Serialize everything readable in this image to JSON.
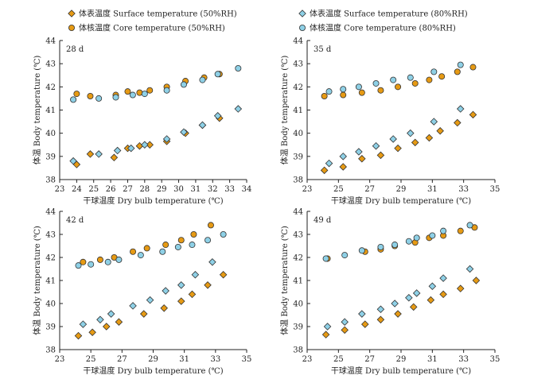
{
  "legend": [
    {
      "label": "体表温度 Surface temperature (50%RH)",
      "marker": "diamond",
      "color": "#E69A14"
    },
    {
      "label": "体表温度 Surface temperature (80%RH)",
      "marker": "diamond",
      "color": "#8ED0E6"
    },
    {
      "label": "体核温度 Core temperature (50%RH)",
      "marker": "circle",
      "color": "#E69A14"
    },
    {
      "label": "体核温度 Core temperature (80%RH)",
      "marker": "circle",
      "color": "#8ED0E6"
    }
  ],
  "colors": {
    "rh50": "#E69A14",
    "rh80": "#8ED0E6",
    "stroke": "#333333"
  },
  "chart_data": [
    {
      "type": "scatter",
      "title": "28 d",
      "xlabel": "干球温度 Dry bulb temperature (℃)",
      "ylabel": "体温 Body temperature (℃)",
      "xlim": [
        23,
        34
      ],
      "ylim": [
        38,
        44
      ],
      "xticks": [
        23,
        24,
        25,
        26,
        27,
        28,
        29,
        30,
        31,
        32,
        33,
        34
      ],
      "yticks": [
        38,
        39,
        40,
        41,
        42,
        43,
        44
      ],
      "series": [
        {
          "name": "体表温度 Surface temperature (50%RH)",
          "marker": "diamond",
          "x": [
            24.0,
            24.8,
            26.2,
            27.0,
            27.7,
            28.3,
            29.3,
            30.4,
            31.4,
            32.4
          ],
          "y": [
            38.65,
            39.1,
            38.95,
            39.35,
            39.45,
            39.5,
            39.65,
            40.0,
            40.35,
            40.65
          ]
        },
        {
          "name": "体表温度 Surface temperature (80%RH)",
          "marker": "diamond",
          "x": [
            23.8,
            25.3,
            26.4,
            27.2,
            28.0,
            29.3,
            30.3,
            31.4,
            32.3,
            33.5
          ],
          "y": [
            38.8,
            39.1,
            39.25,
            39.35,
            39.5,
            39.75,
            40.05,
            40.35,
            40.75,
            41.05
          ]
        },
        {
          "name": "体核温度 Core temperature (50%RH)",
          "marker": "circle",
          "x": [
            24.0,
            24.8,
            26.3,
            27.0,
            27.7,
            28.3,
            29.3,
            30.4,
            31.5,
            32.4
          ],
          "y": [
            41.7,
            41.6,
            41.65,
            41.8,
            41.75,
            41.85,
            42.0,
            42.25,
            42.4,
            42.55
          ]
        },
        {
          "name": "体核温度 Core temperature (80%RH)",
          "marker": "circle",
          "x": [
            23.8,
            25.3,
            26.3,
            27.3,
            28.0,
            29.3,
            30.3,
            31.4,
            32.3,
            33.5
          ],
          "y": [
            41.45,
            41.5,
            41.55,
            41.65,
            41.7,
            41.85,
            42.1,
            42.3,
            42.55,
            42.8
          ]
        }
      ]
    },
    {
      "type": "scatter",
      "title": "35 d",
      "xlabel": "干球温度 Dry bulb temperature (℃)",
      "ylabel": "体温 Body temperature (℃)",
      "xlim": [
        23,
        35
      ],
      "ylim": [
        38,
        44
      ],
      "xticks": [
        23,
        25,
        27,
        29,
        31,
        33,
        35
      ],
      "yticks": [
        38,
        39,
        40,
        41,
        42,
        43,
        44
      ],
      "series": [
        {
          "name": "体表温度 Surface temperature (50%RH)",
          "marker": "diamond",
          "x": [
            24.1,
            25.3,
            26.5,
            27.7,
            28.8,
            29.9,
            30.8,
            31.5,
            32.6,
            33.6
          ],
          "y": [
            38.4,
            38.55,
            38.9,
            39.05,
            39.35,
            39.6,
            39.8,
            40.1,
            40.45,
            40.8
          ]
        },
        {
          "name": "体表温度 Surface temperature (80%RH)",
          "marker": "diamond",
          "x": [
            24.4,
            25.3,
            26.3,
            27.4,
            28.5,
            29.6,
            31.1,
            32.8
          ],
          "y": [
            38.7,
            39.0,
            39.2,
            39.45,
            39.75,
            40.0,
            40.5,
            41.05
          ]
        },
        {
          "name": "体核温度 Core temperature (50%RH)",
          "marker": "circle",
          "x": [
            24.1,
            25.3,
            26.5,
            27.7,
            28.8,
            29.9,
            30.8,
            31.6,
            32.6,
            33.6
          ],
          "y": [
            41.6,
            41.65,
            41.75,
            41.85,
            42.0,
            42.15,
            42.3,
            42.45,
            42.65,
            42.85
          ]
        },
        {
          "name": "体核温度 Core temperature (80%RH)",
          "marker": "circle",
          "x": [
            24.4,
            25.3,
            26.3,
            27.4,
            28.5,
            29.6,
            31.1,
            32.8
          ],
          "y": [
            41.8,
            41.9,
            42.0,
            42.15,
            42.3,
            42.4,
            42.65,
            42.95
          ]
        }
      ]
    },
    {
      "type": "scatter",
      "title": "42 d",
      "xlabel": "干球温度 Dry bulb temperature (℃)",
      "ylabel": "体温 Body temperature (℃)",
      "xlim": [
        23,
        35
      ],
      "ylim": [
        38,
        44
      ],
      "xticks": [
        23,
        25,
        27,
        29,
        31,
        33,
        35
      ],
      "yticks": [
        38,
        39,
        40,
        41,
        42,
        43,
        44
      ],
      "series": [
        {
          "name": "体表温度 Surface temperature (50%RH)",
          "marker": "diamond",
          "x": [
            24.2,
            25.1,
            26.0,
            26.8,
            28.4,
            29.7,
            30.8,
            31.5,
            32.5,
            33.5
          ],
          "y": [
            38.6,
            38.75,
            39.0,
            39.2,
            39.55,
            39.8,
            40.1,
            40.4,
            40.8,
            41.25
          ]
        },
        {
          "name": "体表温度 Surface temperature (80%RH)",
          "marker": "diamond",
          "x": [
            24.5,
            25.6,
            26.3,
            27.7,
            28.8,
            29.8,
            30.8,
            31.7,
            32.8
          ],
          "y": [
            39.1,
            39.3,
            39.55,
            39.9,
            40.15,
            40.55,
            40.8,
            41.25,
            41.8
          ]
        },
        {
          "name": "体核温度 Core temperature (50%RH)",
          "marker": "circle",
          "x": [
            24.5,
            25.6,
            26.5,
            27.7,
            28.6,
            29.8,
            30.8,
            31.6,
            32.7
          ],
          "y": [
            41.8,
            41.9,
            42.0,
            42.25,
            42.4,
            42.55,
            42.75,
            43.0,
            43.4
          ]
        },
        {
          "name": "体核温度 Core temperature (80%RH)",
          "marker": "circle",
          "x": [
            24.2,
            25.0,
            26.1,
            26.8,
            28.2,
            29.6,
            30.6,
            31.5,
            32.5,
            33.5
          ],
          "y": [
            41.65,
            41.7,
            41.8,
            41.9,
            42.1,
            42.25,
            42.45,
            42.55,
            42.75,
            43.0
          ]
        }
      ]
    },
    {
      "type": "scatter",
      "title": "49 d",
      "xlabel": "干球温度 Dry bulb temperature (℃)",
      "ylabel": "体温 Body temperature (℃)",
      "xlim": [
        23,
        35
      ],
      "ylim": [
        38,
        44
      ],
      "xticks": [
        23,
        25,
        27,
        29,
        31,
        33,
        35
      ],
      "yticks": [
        38,
        39,
        40,
        41,
        42,
        43,
        44
      ],
      "series": [
        {
          "name": "体表温度 Surface temperature (50%RH)",
          "marker": "diamond",
          "x": [
            24.2,
            25.4,
            26.7,
            27.7,
            28.8,
            29.8,
            30.9,
            31.7,
            32.8,
            33.8
          ],
          "y": [
            38.65,
            38.85,
            39.1,
            39.3,
            39.55,
            39.85,
            40.15,
            40.4,
            40.65,
            41.0
          ]
        },
        {
          "name": "体表温度 Surface temperature (80%RH)",
          "marker": "diamond",
          "x": [
            24.3,
            25.4,
            26.5,
            27.7,
            28.6,
            29.5,
            30.0,
            31.0,
            31.7,
            33.4
          ],
          "y": [
            39.0,
            39.2,
            39.55,
            39.75,
            40.0,
            40.25,
            40.45,
            40.75,
            41.1,
            41.5
          ]
        },
        {
          "name": "体核温度 Core temperature (50%RH)",
          "marker": "circle",
          "x": [
            24.3,
            26.7,
            27.7,
            28.6,
            29.9,
            30.8,
            31.7,
            32.8,
            33.7
          ],
          "y": [
            41.95,
            42.25,
            42.35,
            42.5,
            42.65,
            42.85,
            42.95,
            43.15,
            43.3
          ]
        },
        {
          "name": "体核温度 Core temperature (80%RH)",
          "marker": "circle",
          "x": [
            24.2,
            25.4,
            26.5,
            27.7,
            28.6,
            29.5,
            30.0,
            31.0,
            31.7,
            33.4
          ],
          "y": [
            41.95,
            42.1,
            42.3,
            42.45,
            42.55,
            42.7,
            42.85,
            42.95,
            43.15,
            43.4
          ]
        }
      ]
    }
  ]
}
